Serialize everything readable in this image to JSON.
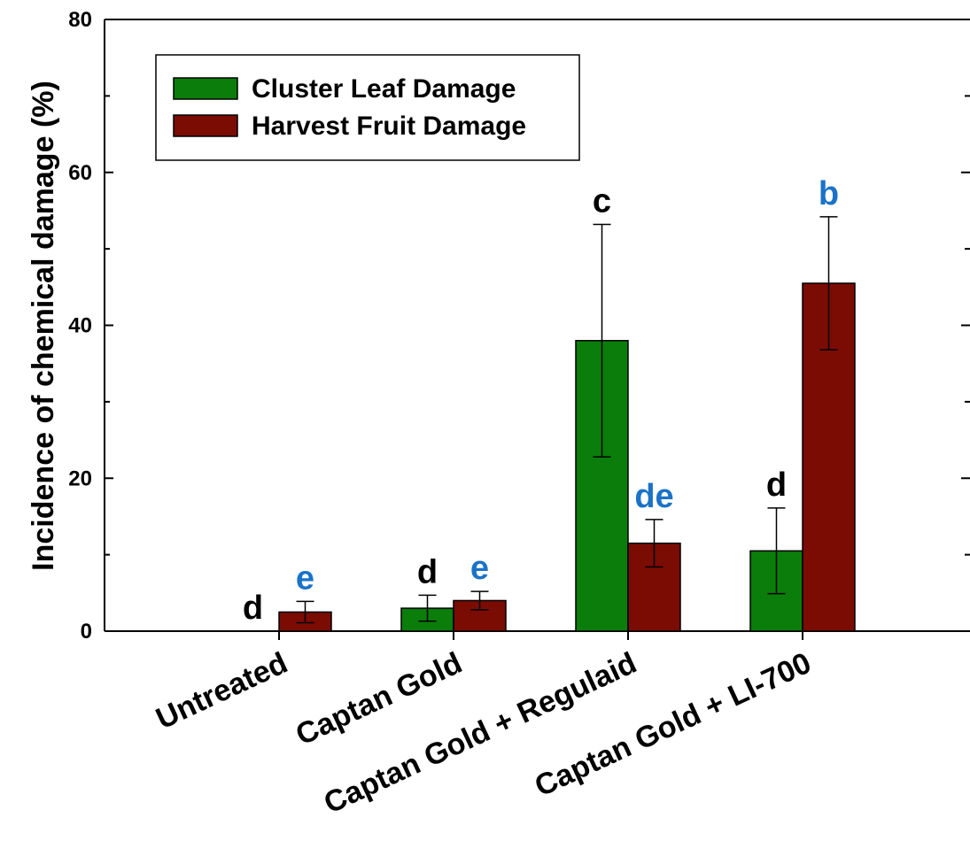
{
  "chart_data": {
    "type": "bar",
    "ylabel": "Incidence of chemical damage (%)",
    "xlabel": "",
    "ylim": [
      0,
      80
    ],
    "yticks": [
      0,
      20,
      40,
      60,
      80
    ],
    "ytick_labels": [
      "0",
      "20",
      "40",
      "60",
      "80"
    ],
    "grid": false,
    "legend_position": "top-left",
    "categories": [
      "Untreated",
      "Captan Gold",
      "Captan Gold + Regulaid",
      "Captan Gold + LI-700"
    ],
    "series": [
      {
        "name": "Cluster Leaf Damage",
        "color": "#0a7d0a",
        "values": [
          0,
          3.0,
          38.0,
          10.5
        ],
        "error": [
          0,
          1.7,
          15.2,
          5.6
        ],
        "labels": [
          "d",
          "d",
          "c",
          "d"
        ],
        "label_color": "#000000"
      },
      {
        "name": "Harvest Fruit Damage",
        "color": "#7a0c04",
        "values": [
          2.5,
          4.0,
          11.5,
          45.5
        ],
        "error": [
          1.4,
          1.2,
          3.1,
          8.7
        ],
        "labels": [
          "e",
          "e",
          "de",
          "b"
        ],
        "label_color": "#1a73c7"
      }
    ]
  }
}
